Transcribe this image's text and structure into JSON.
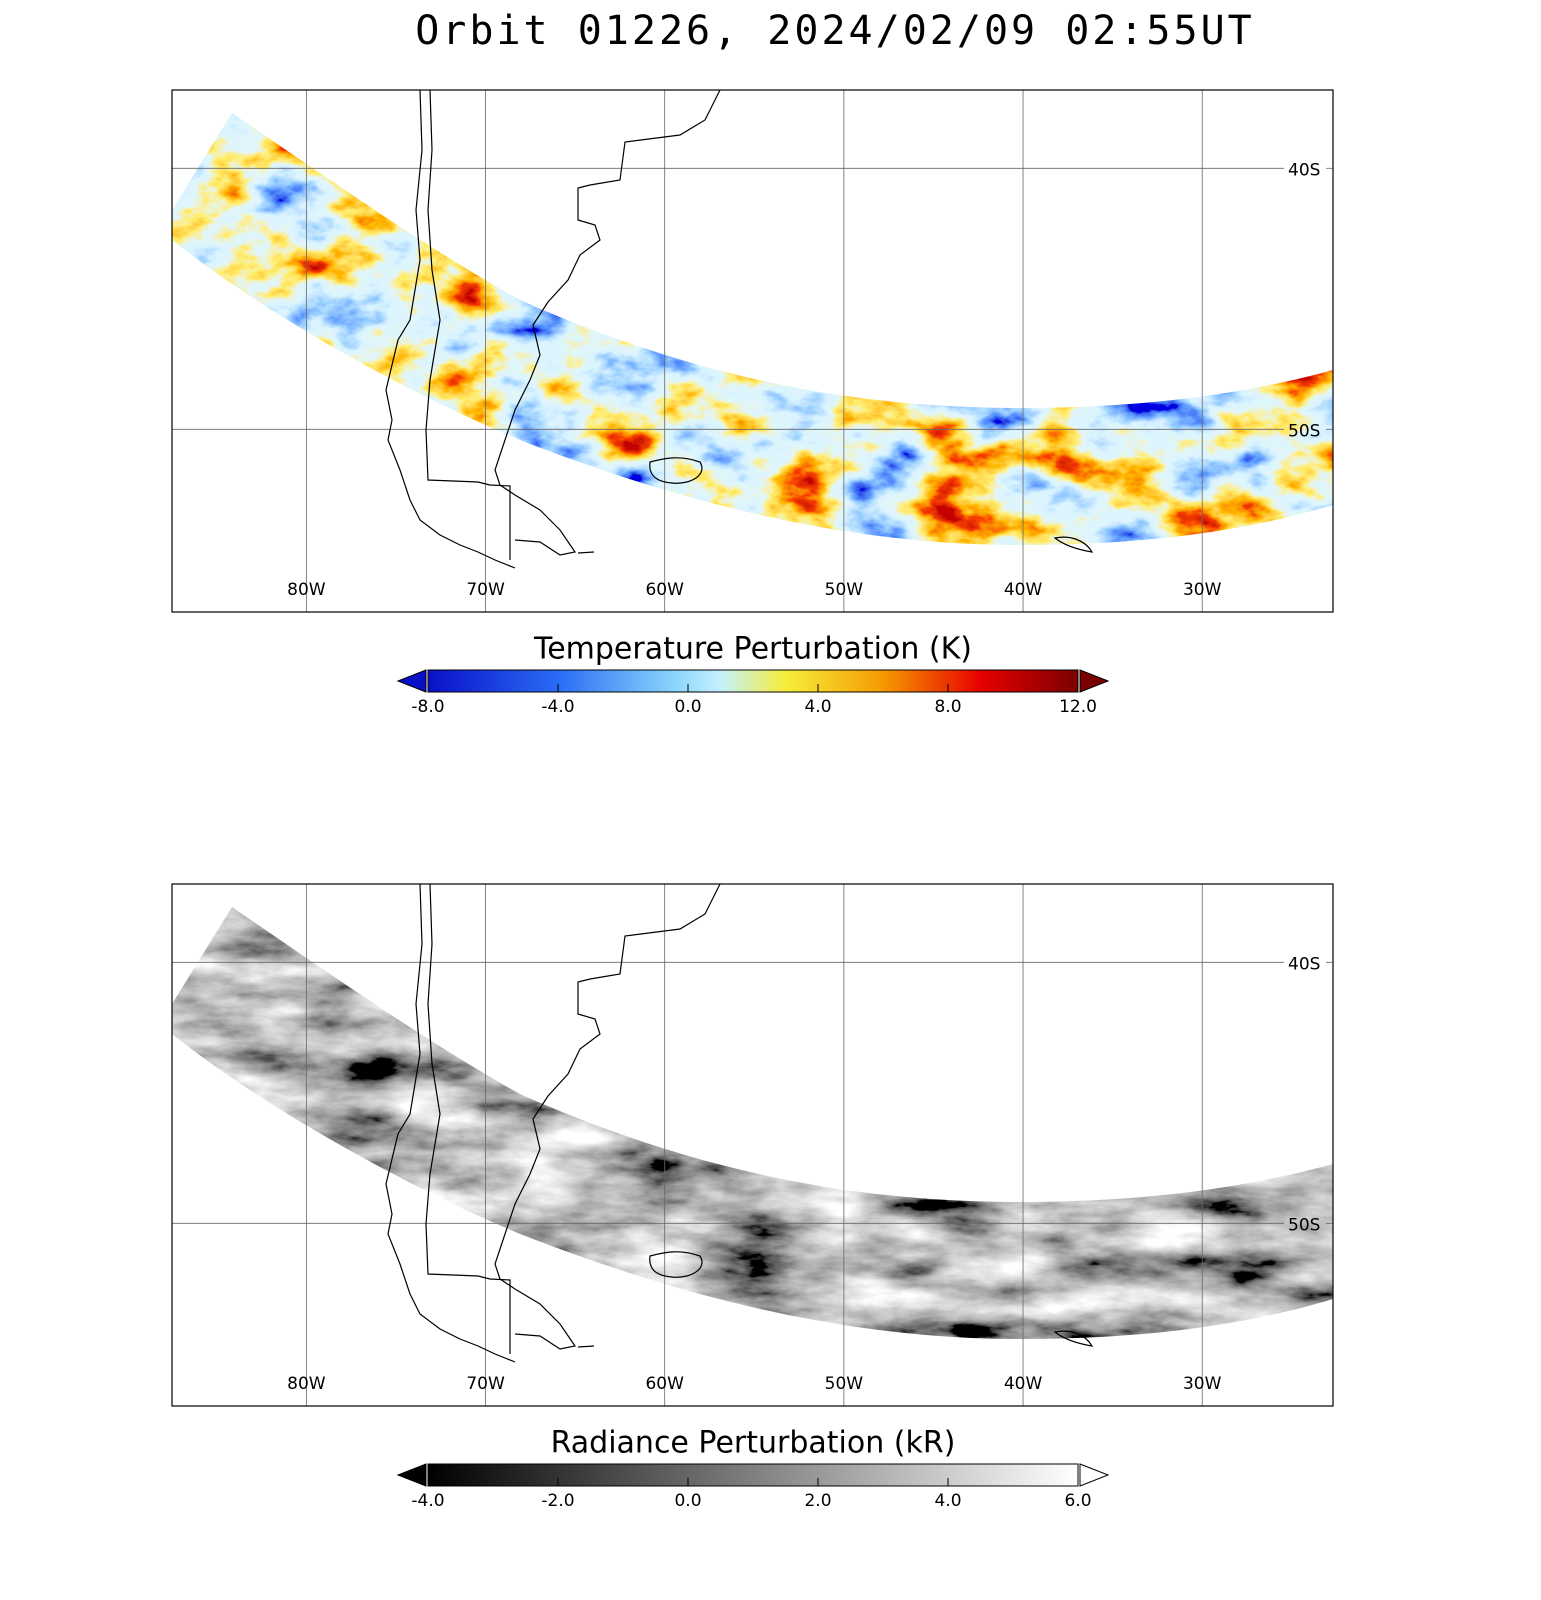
{
  "title": "Orbit 01226, 2024/02/09 02:55UT",
  "map": {
    "lonlim": [
      -87.5,
      -22.7
    ],
    "latlim": [
      -37,
      -57
    ],
    "lon_ticks": [
      {
        "value": -80,
        "label": "80W"
      },
      {
        "value": -70,
        "label": "70W"
      },
      {
        "value": -60,
        "label": "60W"
      },
      {
        "value": -50,
        "label": "50W"
      },
      {
        "value": -40,
        "label": "40W"
      },
      {
        "value": -30,
        "label": "30W"
      }
    ],
    "lat_ticks": [
      {
        "value": -40,
        "label": "40S"
      },
      {
        "value": -50,
        "label": "50S"
      }
    ]
  },
  "panels": [
    {
      "colorbar": {
        "title": "Temperature Perturbation (K)",
        "lim": [
          -8,
          12
        ],
        "ticks": [
          {
            "value": -8,
            "label": "-8.0"
          },
          {
            "value": -4,
            "label": "-4.0"
          },
          {
            "value": 0,
            "label": "0.0"
          },
          {
            "value": 4,
            "label": "4.0"
          },
          {
            "value": 8,
            "label": "8.0"
          },
          {
            "value": 12,
            "label": "12.0"
          }
        ]
      }
    },
    {
      "colorbar": {
        "title": "Radiance Perturbation (kR)",
        "lim": [
          -4,
          6
        ],
        "ticks": [
          {
            "value": -4,
            "label": "-4.0"
          },
          {
            "value": -2,
            "label": "-2.0"
          },
          {
            "value": 0,
            "label": "0.0"
          },
          {
            "value": 2,
            "label": "2.0"
          },
          {
            "value": 4,
            "label": "4.0"
          },
          {
            "value": 6,
            "label": "6.0"
          }
        ]
      }
    }
  ]
}
